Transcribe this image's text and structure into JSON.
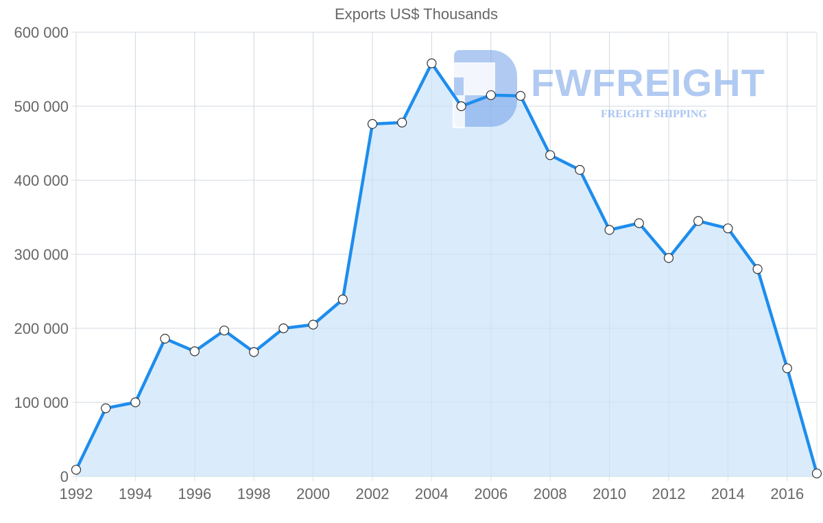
{
  "chart_data": {
    "type": "line",
    "title": "Exports US$ Thousands",
    "xlabel": "",
    "ylabel": "",
    "x": [
      1992,
      1993,
      1994,
      1995,
      1996,
      1997,
      1998,
      1999,
      2000,
      2001,
      2002,
      2003,
      2004,
      2005,
      2006,
      2007,
      2008,
      2009,
      2010,
      2011,
      2012,
      2013,
      2014,
      2015,
      2016,
      2017
    ],
    "series": [
      {
        "name": "Exports US$ Thousands",
        "values": [
          9000,
          92000,
          100000,
          186000,
          169000,
          197000,
          168000,
          200000,
          205000,
          239000,
          476000,
          478000,
          558000,
          500000,
          515000,
          514000,
          434000,
          414000,
          333000,
          342000,
          295000,
          345000,
          335000,
          280000,
          146000,
          4000
        ],
        "color": "#1e8ded",
        "fill": "#d8ebfc"
      }
    ],
    "x_tick_labels": [
      "1992",
      "1994",
      "1996",
      "1998",
      "2000",
      "2002",
      "2004",
      "2006",
      "2008",
      "2010",
      "2012",
      "2014",
      "2016"
    ],
    "y_tick_labels": [
      "0",
      "100 000",
      "200 000",
      "300 000",
      "400 000",
      "500 000",
      "600 000"
    ],
    "y_ticks": [
      0,
      100000,
      200000,
      300000,
      400000,
      500000,
      600000
    ],
    "xlim": [
      1992,
      2017
    ],
    "ylim": [
      0,
      600000
    ],
    "grid": true,
    "legend": null,
    "area_fill": true,
    "watermark": {
      "brand": "FWFREIGHT",
      "tagline": "FREIGHT SHIPPING"
    }
  },
  "colors": {
    "line": "#1e8ded",
    "area": "#d8ebfc",
    "grid": "#e2e2e2",
    "axis_text": "#666666",
    "marker_fill": "#ffffff",
    "marker_stroke": "#333333"
  }
}
